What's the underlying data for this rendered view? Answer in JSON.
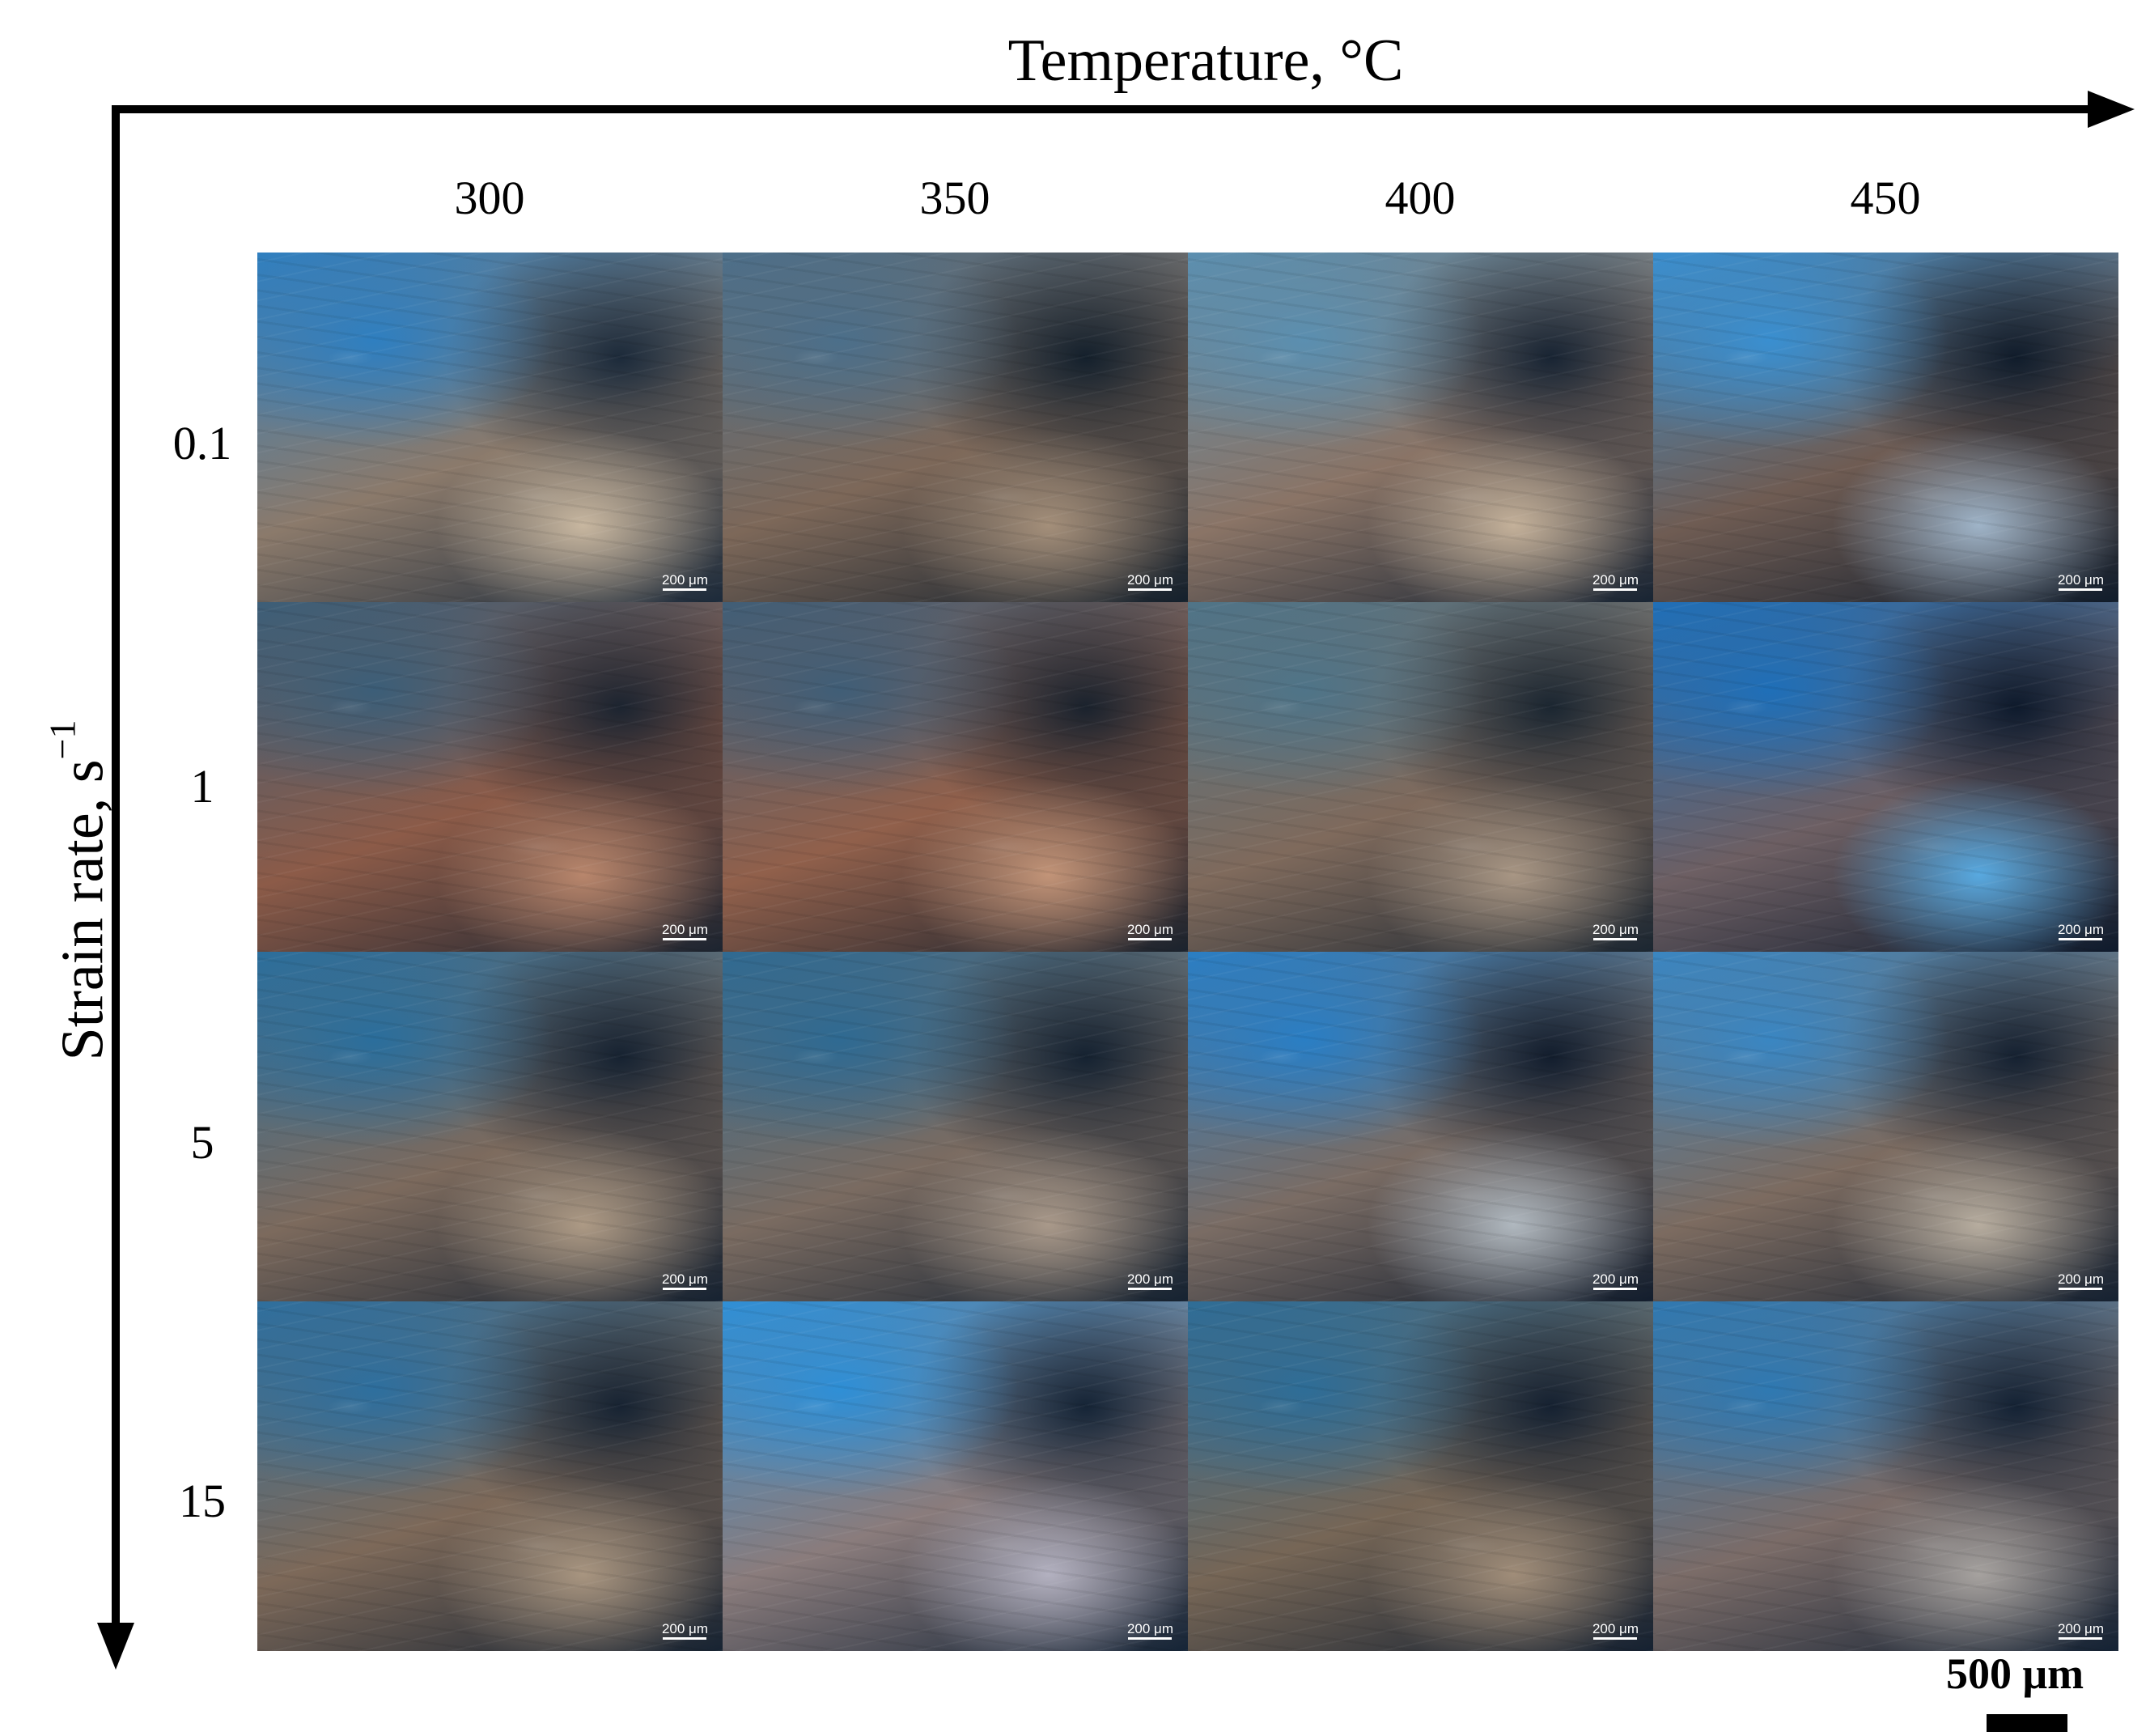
{
  "figure": {
    "x_axis_title": "Temperature, °C",
    "y_axis_title": "Strain rate, s",
    "y_axis_title_exp": "−1",
    "columns": [
      "300",
      "350",
      "400",
      "450"
    ],
    "rows": [
      "0.1",
      "1",
      "5",
      "15"
    ],
    "tile_scale_label": "200 μm",
    "scale_bar_label": "500 μm",
    "tiles": [
      {
        "temperature": "300",
        "strain_rate": "0.1",
        "colors": [
          "#2f7fc0",
          "#8b7a6b",
          "#1c2a3a",
          "#c8b7a0"
        ]
      },
      {
        "temperature": "350",
        "strain_rate": "0.1",
        "colors": [
          "#4c6f8a",
          "#7d6859",
          "#14202c",
          "#a48f7a"
        ]
      },
      {
        "temperature": "400",
        "strain_rate": "0.1",
        "colors": [
          "#5b8fb0",
          "#8a7466",
          "#182433",
          "#c4b19a"
        ]
      },
      {
        "temperature": "450",
        "strain_rate": "0.1",
        "colors": [
          "#3a8fd0",
          "#6f5c53",
          "#101c2b",
          "#9fb4c8"
        ]
      },
      {
        "temperature": "300",
        "strain_rate": "1",
        "colors": [
          "#3c5e78",
          "#8c5b48",
          "#1c2430",
          "#b8866c"
        ]
      },
      {
        "temperature": "350",
        "strain_rate": "1",
        "colors": [
          "#405e77",
          "#91604b",
          "#1a222d",
          "#c29478"
        ]
      },
      {
        "temperature": "400",
        "strain_rate": "1",
        "colors": [
          "#4f7488",
          "#7f6a5c",
          "#1b2631",
          "#a89684"
        ]
      },
      {
        "temperature": "450",
        "strain_rate": "1",
        "colors": [
          "#1f6fb8",
          "#6d5f63",
          "#0e1a2c",
          "#58a9e0"
        ]
      },
      {
        "temperature": "300",
        "strain_rate": "5",
        "colors": [
          "#2b6e9c",
          "#7c6a5d",
          "#162231",
          "#ad9a85"
        ]
      },
      {
        "temperature": "350",
        "strain_rate": "5",
        "colors": [
          "#2f6a92",
          "#7a6b61",
          "#152231",
          "#a9998a"
        ]
      },
      {
        "temperature": "400",
        "strain_rate": "5",
        "colors": [
          "#2a7ec4",
          "#7a6c64",
          "#121d2d",
          "#b0b8bf"
        ]
      },
      {
        "temperature": "450",
        "strain_rate": "5",
        "colors": [
          "#3a86c2",
          "#7c6b60",
          "#152131",
          "#b7ad9f"
        ]
      },
      {
        "temperature": "300",
        "strain_rate": "15",
        "colors": [
          "#2e6f9e",
          "#7d6959",
          "#172332",
          "#a89580"
        ]
      },
      {
        "temperature": "350",
        "strain_rate": "15",
        "colors": [
          "#2f8fd6",
          "#8a7c7c",
          "#152436",
          "#b3b1c0"
        ]
      },
      {
        "temperature": "400",
        "strain_rate": "15",
        "colors": [
          "#2e6d97",
          "#766656",
          "#152131",
          "#a08d79"
        ]
      },
      {
        "temperature": "450",
        "strain_rate": "15",
        "colors": [
          "#2f79b2",
          "#7b6c68",
          "#142234",
          "#a6a29f"
        ]
      }
    ]
  }
}
